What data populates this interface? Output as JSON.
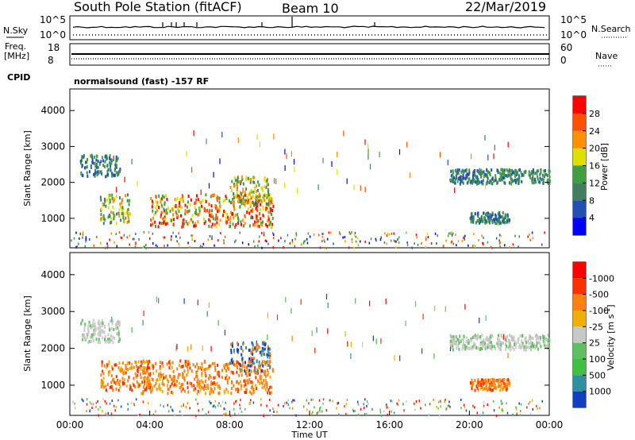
{
  "header": {
    "station": "South Pole Station (fitACF)",
    "beam": "Beam 10",
    "date": "22/Mar/2019"
  },
  "strips": {
    "nsky_label": "N.Sky",
    "nsearch_label": "N.Search",
    "freq_label_1": "Freq.",
    "freq_label_2": "[MHz]",
    "nave_label": "Nave",
    "cpid_label": "CPID",
    "nsky_ticks": [
      "10^5",
      "10^0"
    ],
    "nsearch_ticks": [
      "10^5",
      "10^0"
    ],
    "freq_ticks": [
      "18",
      "8"
    ],
    "nave_ticks": [
      "60",
      "0"
    ],
    "cpid_text": "normalsound (fast) -157 RF"
  },
  "chart_data": [
    {
      "type": "heatmap",
      "title": "",
      "xlabel": "",
      "ylabel": "Slant Range [km]",
      "xlim": [
        0,
        24
      ],
      "ylim": [
        180,
        4600
      ],
      "y_ticks": [
        "1000",
        "2000",
        "3000",
        "4000"
      ],
      "colorbar": {
        "label": "Power [dB]",
        "ticks": [
          "4",
          "8",
          "12",
          "16",
          "20",
          "24",
          "28"
        ],
        "colors": [
          "#0000ff",
          "#2050b0",
          "#408060",
          "#40a040",
          "#e0e000",
          "#ff9000",
          "#ff5000",
          "#ff0000"
        ]
      },
      "regions": [
        {
          "x0": 0.5,
          "x1": 2.5,
          "y0": 2200,
          "y1": 2800,
          "level": "low"
        },
        {
          "x0": 1.5,
          "x1": 3.0,
          "y0": 900,
          "y1": 1700,
          "level": "mid"
        },
        {
          "x0": 4.0,
          "x1": 10.2,
          "y0": 800,
          "y1": 1700,
          "level": "high"
        },
        {
          "x0": 8.0,
          "x1": 10.0,
          "y0": 1400,
          "y1": 2200,
          "level": "mid"
        },
        {
          "x0": 19.0,
          "x1": 24.0,
          "y0": 2000,
          "y1": 2400,
          "level": "low"
        },
        {
          "x0": 20.0,
          "x1": 22.0,
          "y0": 900,
          "y1": 1200,
          "level": "low"
        }
      ]
    },
    {
      "type": "heatmap",
      "title": "",
      "xlabel": "Time UT",
      "ylabel": "Slant Range [km]",
      "xlim": [
        0,
        24
      ],
      "ylim": [
        180,
        4600
      ],
      "x_ticks": [
        "00:00",
        "04:00",
        "08:00",
        "12:00",
        "16:00",
        "20:00",
        "00:00"
      ],
      "y_ticks": [
        "1000",
        "2000",
        "3000",
        "4000"
      ],
      "colorbar": {
        "label": "Velocity [m s",
        "label_sup": "-1",
        "label_end": "]",
        "ticks": [
          "1000",
          "500",
          "100",
          "25",
          "-25",
          "-100",
          "-500",
          "-1000"
        ],
        "colors": [
          "#1040c0",
          "#3090a0",
          "#40c040",
          "#60c060",
          "#c8c8c8",
          "#f0b000",
          "#ff8010",
          "#ff3000",
          "#ff0000"
        ]
      },
      "regions": [
        {
          "x0": 0.5,
          "x1": 2.5,
          "y0": 2200,
          "y1": 2800,
          "level": "gray"
        },
        {
          "x0": 1.5,
          "x1": 4.0,
          "y0": 900,
          "y1": 1700,
          "level": "orange"
        },
        {
          "x0": 3.5,
          "x1": 10.2,
          "y0": 800,
          "y1": 1700,
          "level": "orange"
        },
        {
          "x0": 8.0,
          "x1": 10.0,
          "y0": 1400,
          "y1": 2200,
          "level": "blue"
        },
        {
          "x0": 19.0,
          "x1": 24.0,
          "y0": 2000,
          "y1": 2400,
          "level": "gray"
        },
        {
          "x0": 20.0,
          "x1": 22.0,
          "y0": 900,
          "y1": 1200,
          "level": "orange"
        }
      ]
    }
  ]
}
